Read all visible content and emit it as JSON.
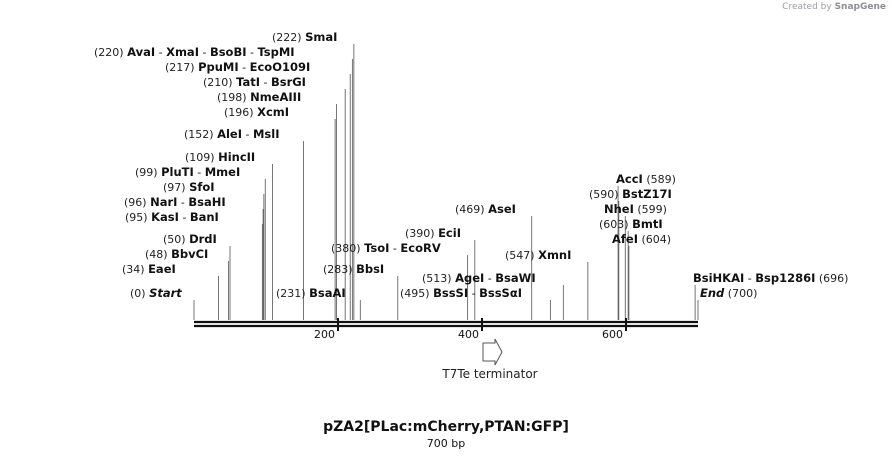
{
  "plasmid": {
    "name": "pZA2[PLac:mCherry,PTAN:GFP]",
    "length_label": "700 bp"
  },
  "credit": {
    "prefix": "Created by",
    "brand": "SnapGene"
  },
  "axis": {
    "start": 0,
    "end": 700,
    "ticks": [
      "200",
      "400",
      "600"
    ]
  },
  "feature": {
    "label": "T7Te terminator",
    "direction": "forward"
  },
  "sites": [
    {
      "pos": "(0)",
      "enzymes": [
        "Start"
      ],
      "italic": true
    },
    {
      "pos": "(34)",
      "enzymes": [
        "EaeI"
      ]
    },
    {
      "pos": "(48)",
      "enzymes": [
        "BbvCI"
      ]
    },
    {
      "pos": "(50)",
      "enzymes": [
        "DrdI"
      ]
    },
    {
      "pos": "(95)",
      "enzymes": [
        "KasI",
        "BanI"
      ]
    },
    {
      "pos": "(96)",
      "enzymes": [
        "NarI",
        "BsaHI"
      ]
    },
    {
      "pos": "(97)",
      "enzymes": [
        "SfoI"
      ]
    },
    {
      "pos": "(99)",
      "enzymes": [
        "PluTI",
        "MmeI"
      ]
    },
    {
      "pos": "(109)",
      "enzymes": [
        "HincII"
      ]
    },
    {
      "pos": "(152)",
      "enzymes": [
        "AleI",
        "MslI"
      ]
    },
    {
      "pos": "(196)",
      "enzymes": [
        "XcmI"
      ]
    },
    {
      "pos": "(198)",
      "enzymes": [
        "NmeAIII"
      ]
    },
    {
      "pos": "(210)",
      "enzymes": [
        "TatI",
        "BsrGI"
      ]
    },
    {
      "pos": "(217)",
      "enzymes": [
        "PpuMI",
        "EcoO109I"
      ]
    },
    {
      "pos": "(220)",
      "enzymes": [
        "AvaI",
        "XmaI",
        "BsoBI",
        "TspMI"
      ]
    },
    {
      "pos": "(222)",
      "enzymes": [
        "SmaI"
      ]
    },
    {
      "pos": "(231)",
      "enzymes": [
        "BsaAI"
      ]
    },
    {
      "pos": "(283)",
      "enzymes": [
        "BbsI"
      ]
    },
    {
      "pos": "(380)",
      "enzymes": [
        "TsoI",
        "EcoRV"
      ]
    },
    {
      "pos": "(390)",
      "enzymes": [
        "EciI"
      ]
    },
    {
      "pos": "(469)",
      "enzymes": [
        "AseI"
      ]
    },
    {
      "pos": "(495)",
      "enzymes": [
        "BssSI",
        "BssSαI"
      ]
    },
    {
      "pos": "(513)",
      "enzymes": [
        "AgeI",
        "BsaWI"
      ]
    },
    {
      "pos": "(547)",
      "enzymes": [
        "XmnI"
      ]
    },
    {
      "pos": "(589)",
      "enzymes": [
        "AccI"
      ]
    },
    {
      "pos": "(590)",
      "enzymes": [
        "BstZ17I"
      ]
    },
    {
      "pos": "(599)",
      "enzymes": [
        "NheI"
      ]
    },
    {
      "pos": "(603)",
      "enzymes": [
        "BmtI"
      ]
    },
    {
      "pos": "(604)",
      "enzymes": [
        "AfeI"
      ]
    },
    {
      "pos": "(696)",
      "enzymes": [
        "BsiHKAI",
        "Bsp1286I"
      ]
    },
    {
      "pos": "(700)",
      "enzymes": [
        "End"
      ],
      "italic": true
    }
  ]
}
